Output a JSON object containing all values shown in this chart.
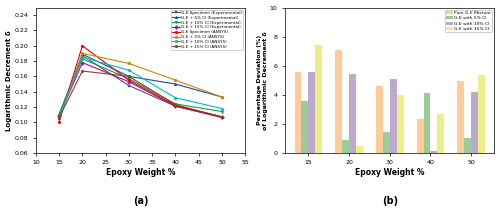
{
  "epoxy_x": [
    15,
    20,
    30,
    40,
    50
  ],
  "lines": [
    {
      "label": "G-E Specimen (Experimental)",
      "values": [
        0.107,
        0.187,
        0.148,
        0.121,
        0.106
      ],
      "color": "#555555",
      "marker": "s",
      "mfc": "#555555"
    },
    {
      "label": "G-E + 5% CI (Experimental)",
      "values": [
        0.11,
        0.189,
        0.16,
        0.15,
        0.133
      ],
      "color": "#2244bb",
      "marker": "^",
      "mfc": "#2244bb"
    },
    {
      "label": "G-E + 10% CI (Experimental)",
      "values": [
        0.11,
        0.183,
        0.157,
        0.124,
        0.114
      ],
      "color": "#00aa44",
      "marker": "v",
      "mfc": "#00aa44"
    },
    {
      "label": "G-E + 15% CI (Experimental)",
      "values": [
        0.108,
        0.178,
        0.153,
        0.121,
        0.107
      ],
      "color": "#bb00bb",
      "marker": "D",
      "mfc": "#bb00bb"
    },
    {
      "label": "G-E Specimen (ANSYS)",
      "values": [
        0.101,
        0.2,
        0.155,
        0.122,
        0.107
      ],
      "color": "#ee0000",
      "marker": "o",
      "mfc": "#ee0000"
    },
    {
      "label": "G-E + 5% CI (ANSYS)",
      "values": [
        0.105,
        0.19,
        0.177,
        0.155,
        0.133
      ],
      "color": "#cc8800",
      "marker": "o",
      "mfc": "#cc8800"
    },
    {
      "label": "G-E + 10% CI (ANSYS)",
      "values": [
        0.106,
        0.185,
        0.168,
        0.132,
        0.118
      ],
      "color": "#00bbbb",
      "marker": "o",
      "mfc": "#00bbbb"
    },
    {
      "label": "G-E + 15% CI (ANSYS)",
      "values": [
        0.106,
        0.167,
        0.16,
        0.123,
        0.107
      ],
      "color": "#884422",
      "marker": "o",
      "mfc": "#884422"
    }
  ],
  "bar_categories": [
    15,
    20,
    30,
    40,
    50
  ],
  "bar_data": [
    {
      "label": "Pure G-E Mixture",
      "values": [
        5.55,
        7.05,
        4.62,
        2.3,
        4.92
      ],
      "color": "#FFCC99"
    },
    {
      "label": "G-E with 5% CI",
      "values": [
        3.6,
        0.9,
        1.42,
        4.12,
        1.0
      ],
      "color": "#99CC99"
    },
    {
      "label": "G-E with 10% CI",
      "values": [
        5.56,
        5.4,
        5.08,
        0.1,
        4.22
      ],
      "color": "#BBAACC"
    },
    {
      "label": "G-E with 15% CI",
      "values": [
        7.42,
        0.45,
        4.0,
        2.65,
        5.38
      ],
      "color": "#EEEE88"
    }
  ],
  "bar_ylim": [
    0,
    10
  ],
  "bar_yticks": [
    0,
    2,
    4,
    6,
    8,
    10
  ],
  "line_ylim": [
    0.06,
    0.25
  ],
  "line_yticks": [
    0.06,
    0.08,
    0.1,
    0.12,
    0.14,
    0.16,
    0.18,
    0.2,
    0.22,
    0.24
  ],
  "line_xlim": [
    10,
    55
  ],
  "line_xticks": [
    10,
    15,
    20,
    25,
    30,
    35,
    40,
    45,
    50,
    55
  ],
  "xlabel_line": "Epoxy Weight %",
  "ylabel_line": "Logarithmic Decrement δ",
  "xlabel_bar": "Epoxy Weight %",
  "ylabel_bar": "Percentage Deviation (%)\nof Logarithmic Decrement δ",
  "label_a": "(a)",
  "label_b": "(b)"
}
